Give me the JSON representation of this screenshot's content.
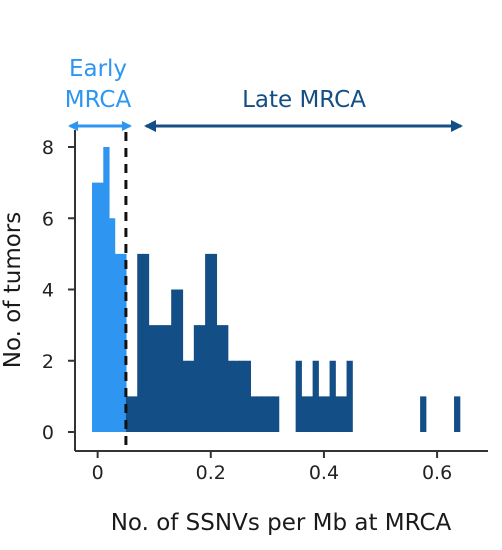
{
  "chart_data": {
    "type": "bar",
    "xlabel": "No. of SSNVs per Mb at MRCA",
    "ylabel": "No. of tumors",
    "xlim": [
      -0.04,
      0.69
    ],
    "ylim": [
      0,
      8
    ],
    "x_ticks": [
      {
        "value": 0,
        "label": "0"
      },
      {
        "value": 0.2,
        "label": "0.2"
      },
      {
        "value": 0.4,
        "label": "0.4"
      },
      {
        "value": 0.6,
        "label": "0.6"
      }
    ],
    "y_ticks": [
      {
        "value": 0,
        "label": "0"
      },
      {
        "value": 2,
        "label": "2"
      },
      {
        "value": 4,
        "label": "4"
      },
      {
        "value": 6,
        "label": "6"
      },
      {
        "value": 8,
        "label": "8"
      }
    ],
    "grid": false,
    "bin_width": 0.01,
    "threshold": 0.05,
    "series": [
      {
        "name": "Early MRCA",
        "color": "#2e96f0",
        "bins": [
          {
            "x": -0.005,
            "y": 7
          },
          {
            "x": 0.005,
            "y": 7
          },
          {
            "x": 0.015,
            "y": 8
          },
          {
            "x": 0.025,
            "y": 6
          },
          {
            "x": 0.035,
            "y": 5
          },
          {
            "x": 0.045,
            "y": 5
          }
        ]
      },
      {
        "name": "Late MRCA",
        "color": "#134e86",
        "bins": [
          {
            "x": 0.055,
            "y": 1
          },
          {
            "x": 0.065,
            "y": 1
          },
          {
            "x": 0.075,
            "y": 5
          },
          {
            "x": 0.085,
            "y": 5
          },
          {
            "x": 0.095,
            "y": 3
          },
          {
            "x": 0.105,
            "y": 3
          },
          {
            "x": 0.115,
            "y": 3
          },
          {
            "x": 0.125,
            "y": 3
          },
          {
            "x": 0.135,
            "y": 4
          },
          {
            "x": 0.145,
            "y": 4
          },
          {
            "x": 0.155,
            "y": 2
          },
          {
            "x": 0.165,
            "y": 2
          },
          {
            "x": 0.175,
            "y": 3
          },
          {
            "x": 0.185,
            "y": 3
          },
          {
            "x": 0.195,
            "y": 5
          },
          {
            "x": 0.205,
            "y": 5
          },
          {
            "x": 0.215,
            "y": 3
          },
          {
            "x": 0.225,
            "y": 3
          },
          {
            "x": 0.235,
            "y": 2
          },
          {
            "x": 0.245,
            "y": 2
          },
          {
            "x": 0.255,
            "y": 2
          },
          {
            "x": 0.265,
            "y": 2
          },
          {
            "x": 0.275,
            "y": 1
          },
          {
            "x": 0.285,
            "y": 1
          },
          {
            "x": 0.295,
            "y": 1
          },
          {
            "x": 0.305,
            "y": 1
          },
          {
            "x": 0.315,
            "y": 1
          },
          {
            "x": 0.355,
            "y": 2
          },
          {
            "x": 0.365,
            "y": 1
          },
          {
            "x": 0.375,
            "y": 1
          },
          {
            "x": 0.385,
            "y": 2
          },
          {
            "x": 0.395,
            "y": 1
          },
          {
            "x": 0.405,
            "y": 1
          },
          {
            "x": 0.415,
            "y": 2
          },
          {
            "x": 0.425,
            "y": 1
          },
          {
            "x": 0.435,
            "y": 1
          },
          {
            "x": 0.445,
            "y": 2
          },
          {
            "x": 0.575,
            "y": 1
          },
          {
            "x": 0.635,
            "y": 1
          }
        ]
      }
    ],
    "annotations": [
      {
        "key": "early",
        "lines": [
          "Early",
          "MRCA"
        ],
        "color": "#2e96f0",
        "arrow_from": -0.005,
        "arrow_to": 0.05
      },
      {
        "key": "late",
        "lines": [
          "Late MRCA"
        ],
        "color": "#134e86",
        "arrow_from": 0.07,
        "arrow_to": 0.655
      }
    ]
  }
}
